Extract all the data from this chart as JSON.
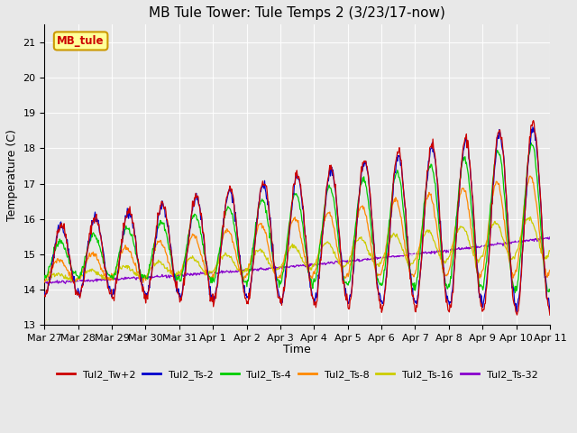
{
  "title": "MB Tule Tower: Tule Temps 2 (3/23/17-now)",
  "xlabel": "Time",
  "ylabel": "Temperature (C)",
  "ylim": [
    13.0,
    21.5
  ],
  "yticks": [
    13.0,
    14.0,
    15.0,
    16.0,
    17.0,
    18.0,
    19.0,
    20.0,
    21.0
  ],
  "bg_color": "#e8e8e8",
  "legend_label": "MB_tule",
  "legend_text_color": "#cc0000",
  "legend_bg": "#ffff99",
  "legend_border": "#cc9900",
  "series_colors": {
    "Tul2_Tw+2": "#cc0000",
    "Tul2_Ts-2": "#0000cc",
    "Tul2_Ts-4": "#00cc00",
    "Tul2_Ts-8": "#ff8800",
    "Tul2_Ts-16": "#cccc00",
    "Tul2_Ts-32": "#8800cc"
  },
  "xtick_labels": [
    "Mar 27",
    "Mar 28",
    "Mar 29",
    "Mar 30",
    "Mar 31",
    "Apr 1",
    "Apr 2",
    "Apr 3",
    "Apr 4",
    "Apr 5",
    "Apr 6",
    "Apr 7",
    "Apr 8",
    "Apr 9",
    "Apr 10",
    "Apr 11"
  ],
  "n_points": 800
}
